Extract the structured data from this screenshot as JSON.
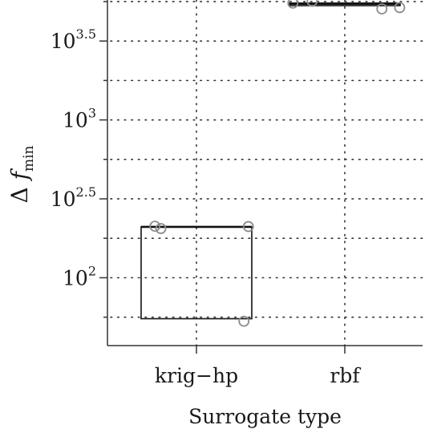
{
  "chart_data": {
    "type": "box",
    "title": "",
    "xlabel": "Surrogate type",
    "ylabel": {
      "symbol": "Δ",
      "var": "f",
      "subscript": "min"
    },
    "y_scale": "log10",
    "ylim_log10": [
      1.57,
      3.76
    ],
    "grid": true,
    "y_ticks": [
      {
        "log10": 2.0,
        "base": "10",
        "exp": "2"
      },
      {
        "log10": 2.5,
        "base": "10",
        "exp": "2.5"
      },
      {
        "log10": 3.0,
        "base": "10",
        "exp": "3"
      },
      {
        "log10": 3.5,
        "base": "10",
        "exp": "3.5"
      }
    ],
    "categories": [
      "krig−hp",
      "rbf"
    ],
    "boxes": [
      {
        "category": "krig−hp",
        "q1": 55,
        "median": 210,
        "q3": 210,
        "whisker_low": 55,
        "whisker_high": 210
      },
      {
        "category": "rbf",
        "q1": 5300,
        "median": 5450,
        "q3": 5500,
        "whisker_low": 5300,
        "whisker_high": 5500
      }
    ],
    "points": [
      {
        "category": "krig−hp",
        "jitter": -0.28,
        "value": 212
      },
      {
        "category": "krig−hp",
        "jitter": -0.24,
        "value": 205
      },
      {
        "category": "krig−hp",
        "jitter": 0.35,
        "value": 211
      },
      {
        "category": "krig−hp",
        "jitter": 0.32,
        "value": 53
      },
      {
        "category": "rbf",
        "jitter": -0.35,
        "value": 5500
      },
      {
        "category": "rbf",
        "jitter": -0.22,
        "value": 5650
      },
      {
        "category": "rbf",
        "jitter": 0.25,
        "value": 5050
      },
      {
        "category": "rbf",
        "jitter": 0.37,
        "value": 5150
      }
    ]
  }
}
